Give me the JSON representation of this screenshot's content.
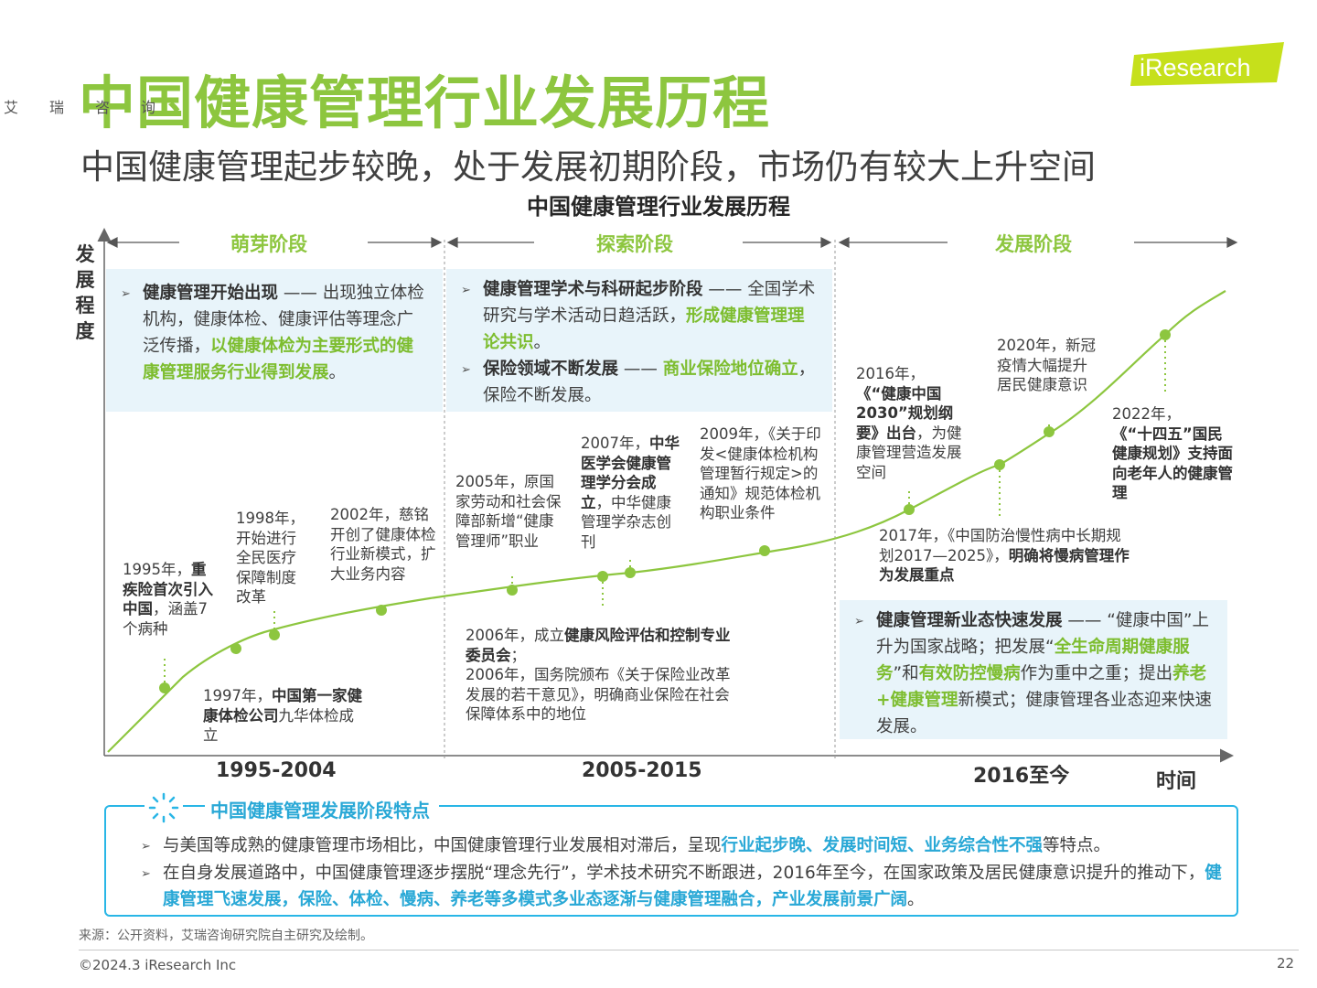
{
  "header": {
    "title": "中国健康管理行业发展历程",
    "subtitle": "中国健康管理起步较晚，处于发展初期阶段，市场仍有较大上升空间",
    "chart_title": "中国健康管理行业发展历程"
  },
  "logo": {
    "brand": "iResearch",
    "cn": [
      "艾",
      "瑞",
      "咨",
      "询"
    ],
    "color": "#c6e01b"
  },
  "axes": {
    "y_label": "发展程度",
    "x_label": "时间"
  },
  "stages": [
    {
      "name": "萌芽阶段",
      "period": "1995-2004"
    },
    {
      "name": "探索阶段",
      "period": "2005-2015"
    },
    {
      "name": "发展阶段",
      "period": "2016至今"
    }
  ],
  "stage_boxes": {
    "s1": [
      [
        {
          "t": "健康管理开始出现",
          "s": "b"
        },
        {
          "t": " —— 出现独立体检机构，健康体检、健康评估等理念广泛传播，"
        },
        {
          "t": "以健康体检为主要形式的健康管理服务行业得到发展",
          "s": "g"
        },
        {
          "t": "。"
        }
      ]
    ],
    "s2": [
      [
        {
          "t": "健康管理学术与科研起步阶段",
          "s": "b"
        },
        {
          "t": " —— 全国学术研究与学术活动日趋活跃，"
        },
        {
          "t": "形成健康管理理论共识",
          "s": "g"
        },
        {
          "t": "。"
        }
      ],
      [
        {
          "t": "保险领域不断发展",
          "s": "b"
        },
        {
          "t": " —— "
        },
        {
          "t": "商业保险地位确立",
          "s": "g"
        },
        {
          "t": "，保险不断发展。"
        }
      ]
    ],
    "s3": [
      [
        {
          "t": "健康管理新业态快速发展",
          "s": "b"
        },
        {
          "t": " —— “健康中国”上升为国家战略；把发展“"
        },
        {
          "t": "全生命周期健康服务",
          "s": "g"
        },
        {
          "t": "”和"
        },
        {
          "t": "有效防控慢病",
          "s": "g"
        },
        {
          "t": "作为重中之重；提出"
        },
        {
          "t": "养老+健康管理",
          "s": "g"
        },
        {
          "t": "新模式；健康管理各业态迎来快速发展。"
        }
      ]
    ]
  },
  "events": {
    "e1995": [
      {
        "t": "1995年，"
      },
      {
        "t": "重疾险首次引入中国",
        "s": "b"
      },
      {
        "t": "，涵盖7个病种"
      }
    ],
    "e1997": [
      {
        "t": "1997年，"
      },
      {
        "t": "中国第一家健康体检公司",
        "s": "b"
      },
      {
        "t": "九华体检成立"
      }
    ],
    "e1998": [
      {
        "t": "1998年，开始进行全民医疗保障制度改革"
      }
    ],
    "e2002": [
      {
        "t": "2002年，慈铭开创了健康体检行业新模式，扩大业务内容"
      }
    ],
    "e2005": [
      {
        "t": "2005年，原国家劳动和社会保障部新增“健康管理师”职业"
      }
    ],
    "e2006": [
      {
        "t": "2006年，成立"
      },
      {
        "t": "健康风险评估和控制专业委员会",
        "s": "b"
      },
      {
        "t": "；\n2006年，国务院颁布《关于保险业改革发展的若干意见》，明确商业保险在社会保障体系中的地位"
      }
    ],
    "e2007": [
      {
        "t": "2007年，"
      },
      {
        "t": "中华医学会健康管理学分会成立",
        "s": "b"
      },
      {
        "t": "，中华健康管理学杂志创刊"
      }
    ],
    "e2009": [
      {
        "t": "2009年，《关于印发<健康体检机构管理暂行规定>的通知》规范体检机构职业条件"
      }
    ],
    "e2016": [
      {
        "t": "2016年，\n"
      },
      {
        "t": "《“健康中国2030”规划纲要》出台",
        "s": "b"
      },
      {
        "t": "，为健康管理营造发展空间"
      }
    ],
    "e2017": [
      {
        "t": "2017年，《中国防治慢性病中长期规划2017—2025》，"
      },
      {
        "t": "明确将慢病管理作为发展重点",
        "s": "b"
      }
    ],
    "e2020": [
      {
        "t": "2020年，新冠疫情大幅提升居民健康意识"
      }
    ],
    "e2022": [
      {
        "t": "2022年，\n"
      },
      {
        "t": "《“十四五”国民健康规划》支持面向老年人的健康管理",
        "s": "b"
      }
    ]
  },
  "features": {
    "title": "中国健康管理发展阶段特点",
    "rows": [
      [
        {
          "t": "与美国等成熟的健康管理市场相比，中国健康管理行业发展相对滞后，呈现"
        },
        {
          "t": "行业起步晚、发展时间短、业务综合性不强",
          "s": "c"
        },
        {
          "t": "等特点。"
        }
      ],
      [
        {
          "t": "在自身发展道路中，中国健康管理逐步摆脱“理念先行”，学术技术研究不断跟进，2016年至今，在国家政策及居民健康意识提升的推动下，"
        },
        {
          "t": "健康管理飞速发展，保险、体检、慢病、养老等多模式多业态逐渐与健康管理融合，产业发展前景广阔",
          "s": "c"
        },
        {
          "t": "。"
        }
      ]
    ]
  },
  "footer": {
    "source": "来源：公开资料，艾瑞咨询研究院自主研究及绘制。",
    "copyright": "©2024.3 iResearch Inc",
    "page": "22"
  },
  "colors": {
    "title_green": "#8dc63f",
    "curve_green": "#8dc63f",
    "box_bg": "#e8f4fa",
    "feature_blue": "#29b6e6"
  }
}
